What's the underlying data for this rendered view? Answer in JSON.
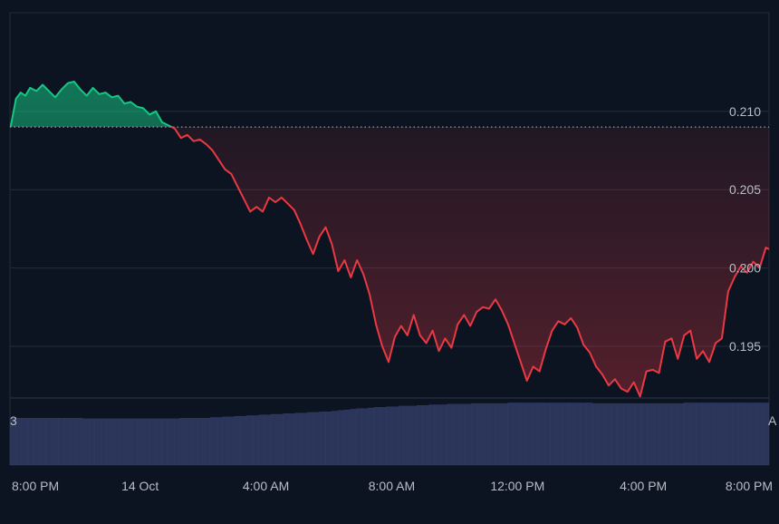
{
  "colors": {
    "background": "#0d1421",
    "grid": "#232c3a",
    "axis_text": "#b7bdc6",
    "up": "#16c784",
    "down": "#ea3943",
    "baseline": "#b7bdc6",
    "volume": "#2b3559",
    "volume_stroke": "#3a4676"
  },
  "chart_data": {
    "type": "area",
    "baseline": 0.209,
    "ylim": [
      0.1917,
      0.2163
    ],
    "y_ticks": [
      {
        "value": 0.21,
        "label": "0.210"
      },
      {
        "value": 0.205,
        "label": "0.205"
      },
      {
        "value": 0.2,
        "label": "0.200"
      },
      {
        "value": 0.195,
        "label": "0.195"
      }
    ],
    "x_ticks": [
      "8:00 PM",
      "14 Oct",
      "4:00 AM",
      "8:00 AM",
      "12:00 PM",
      "4:00 PM",
      "8:00 PM"
    ],
    "x_ticks_hours": [
      0,
      4,
      8,
      12,
      16,
      20,
      24
    ],
    "x_range_hours": [
      -0.14,
      24.0
    ],
    "series": [
      {
        "hours": [
          -0.12,
          0.05,
          0.2,
          0.35,
          0.5,
          0.7,
          0.9,
          1.1,
          1.3,
          1.5,
          1.7,
          1.9,
          2.1,
          2.3,
          2.5,
          2.7,
          2.9,
          3.1,
          3.3,
          3.5,
          3.7,
          3.9,
          4.1,
          4.3,
          4.5,
          4.7,
          4.9,
          5.1,
          5.3,
          5.5,
          5.7,
          5.9,
          6.1,
          6.3,
          6.5,
          6.7,
          6.9,
          7.1,
          7.3,
          7.5,
          7.7,
          7.9,
          8.1,
          8.3,
          8.5,
          8.7,
          8.9,
          9.1,
          9.3,
          9.5,
          9.7,
          9.9,
          10.1,
          10.3,
          10.5,
          10.7,
          10.9,
          11.1,
          11.3,
          11.5,
          11.7,
          11.9,
          12.1,
          12.3,
          12.5,
          12.7,
          12.9,
          13.1,
          13.3,
          13.5,
          13.7,
          13.9,
          14.1,
          14.3,
          14.5,
          14.7,
          14.9,
          15.1,
          15.3,
          15.5,
          15.7,
          15.9,
          16.1,
          16.3,
          16.5,
          16.7,
          16.9,
          17.1,
          17.3,
          17.5,
          17.7,
          17.9,
          18.1,
          18.3,
          18.5,
          18.7,
          18.9,
          19.1,
          19.3,
          19.5,
          19.7,
          19.9,
          20.1,
          20.3,
          20.5,
          20.7,
          20.9,
          21.1,
          21.3,
          21.5,
          21.7,
          21.9,
          22.1,
          22.3,
          22.5,
          22.7,
          22.9,
          23.1,
          23.3,
          23.5,
          23.7,
          23.9,
          24.0
        ],
        "values": [
          0.209,
          0.2108,
          0.2112,
          0.211,
          0.2115,
          0.2113,
          0.2117,
          0.2113,
          0.2109,
          0.2114,
          0.2118,
          0.2119,
          0.2114,
          0.211,
          0.2115,
          0.2111,
          0.2112,
          0.2109,
          0.211,
          0.2105,
          0.2106,
          0.2103,
          0.2102,
          0.2098,
          0.21,
          0.2093,
          0.2091,
          0.2089,
          0.2083,
          0.2085,
          0.2081,
          0.2082,
          0.2079,
          0.2075,
          0.2069,
          0.2063,
          0.206,
          0.2052,
          0.2044,
          0.2036,
          0.2039,
          0.2036,
          0.2045,
          0.2042,
          0.2045,
          0.2041,
          0.2037,
          0.2028,
          0.2018,
          0.2009,
          0.202,
          0.2026,
          0.2015,
          0.1998,
          0.2005,
          0.1994,
          0.2005,
          0.1996,
          0.1983,
          0.1964,
          0.195,
          0.194,
          0.1956,
          0.1963,
          0.1957,
          0.197,
          0.1957,
          0.1952,
          0.196,
          0.1947,
          0.1955,
          0.1949,
          0.1964,
          0.197,
          0.1963,
          0.1972,
          0.1975,
          0.1974,
          0.198,
          0.1973,
          0.1964,
          0.1952,
          0.194,
          0.1928,
          0.1937,
          0.1934,
          0.1948,
          0.196,
          0.1966,
          0.1964,
          0.1968,
          0.1962,
          0.1951,
          0.1946,
          0.1937,
          0.1932,
          0.1925,
          0.1929,
          0.1923,
          0.1921,
          0.1927,
          0.1918,
          0.1934,
          0.1935,
          0.1933,
          0.1953,
          0.1955,
          0.1942,
          0.1957,
          0.196,
          0.1942,
          0.1947,
          0.194,
          0.1952,
          0.1955,
          0.1985,
          0.1994,
          0.2001,
          0.1997,
          0.2004,
          0.2,
          0.2013,
          0.2012
        ]
      }
    ],
    "volume": {
      "relative_levels": [
        0.74,
        0.74,
        0.74,
        0.74,
        0.74,
        0.74,
        0.74,
        0.74,
        0.74,
        0.74,
        0.74,
        0.74,
        0.73,
        0.73,
        0.73,
        0.73,
        0.73,
        0.73,
        0.73,
        0.73,
        0.73,
        0.73,
        0.73,
        0.73,
        0.73,
        0.73,
        0.73,
        0.73,
        0.74,
        0.74,
        0.74,
        0.74,
        0.74,
        0.75,
        0.75,
        0.76,
        0.76,
        0.77,
        0.77,
        0.78,
        0.78,
        0.79,
        0.79,
        0.8,
        0.8,
        0.81,
        0.81,
        0.82,
        0.82,
        0.83,
        0.83,
        0.84,
        0.84,
        0.85,
        0.86,
        0.87,
        0.88,
        0.89,
        0.89,
        0.9,
        0.91,
        0.91,
        0.92,
        0.92,
        0.93,
        0.93,
        0.93,
        0.94,
        0.94,
        0.95,
        0.95,
        0.95,
        0.96,
        0.96,
        0.96,
        0.96,
        0.97,
        0.97,
        0.97,
        0.97,
        0.97,
        0.97,
        0.98,
        0.98,
        0.98,
        0.98,
        0.98,
        0.98,
        0.98,
        0.98,
        0.98,
        0.98,
        0.98,
        0.98,
        0.98,
        0.98,
        0.97,
        0.97,
        0.97,
        0.97,
        0.97,
        0.97,
        0.97,
        0.97,
        0.97,
        0.97,
        0.97,
        0.97,
        0.97,
        0.97,
        0.97,
        0.98,
        0.98,
        0.98,
        0.98,
        0.98,
        0.98,
        0.98,
        0.98,
        0.98,
        0.98,
        0.98,
        0.98,
        0.98,
        0.98
      ]
    },
    "clipped_labels": {
      "volume_left": "3",
      "volume_right": "A"
    },
    "grid": true
  }
}
